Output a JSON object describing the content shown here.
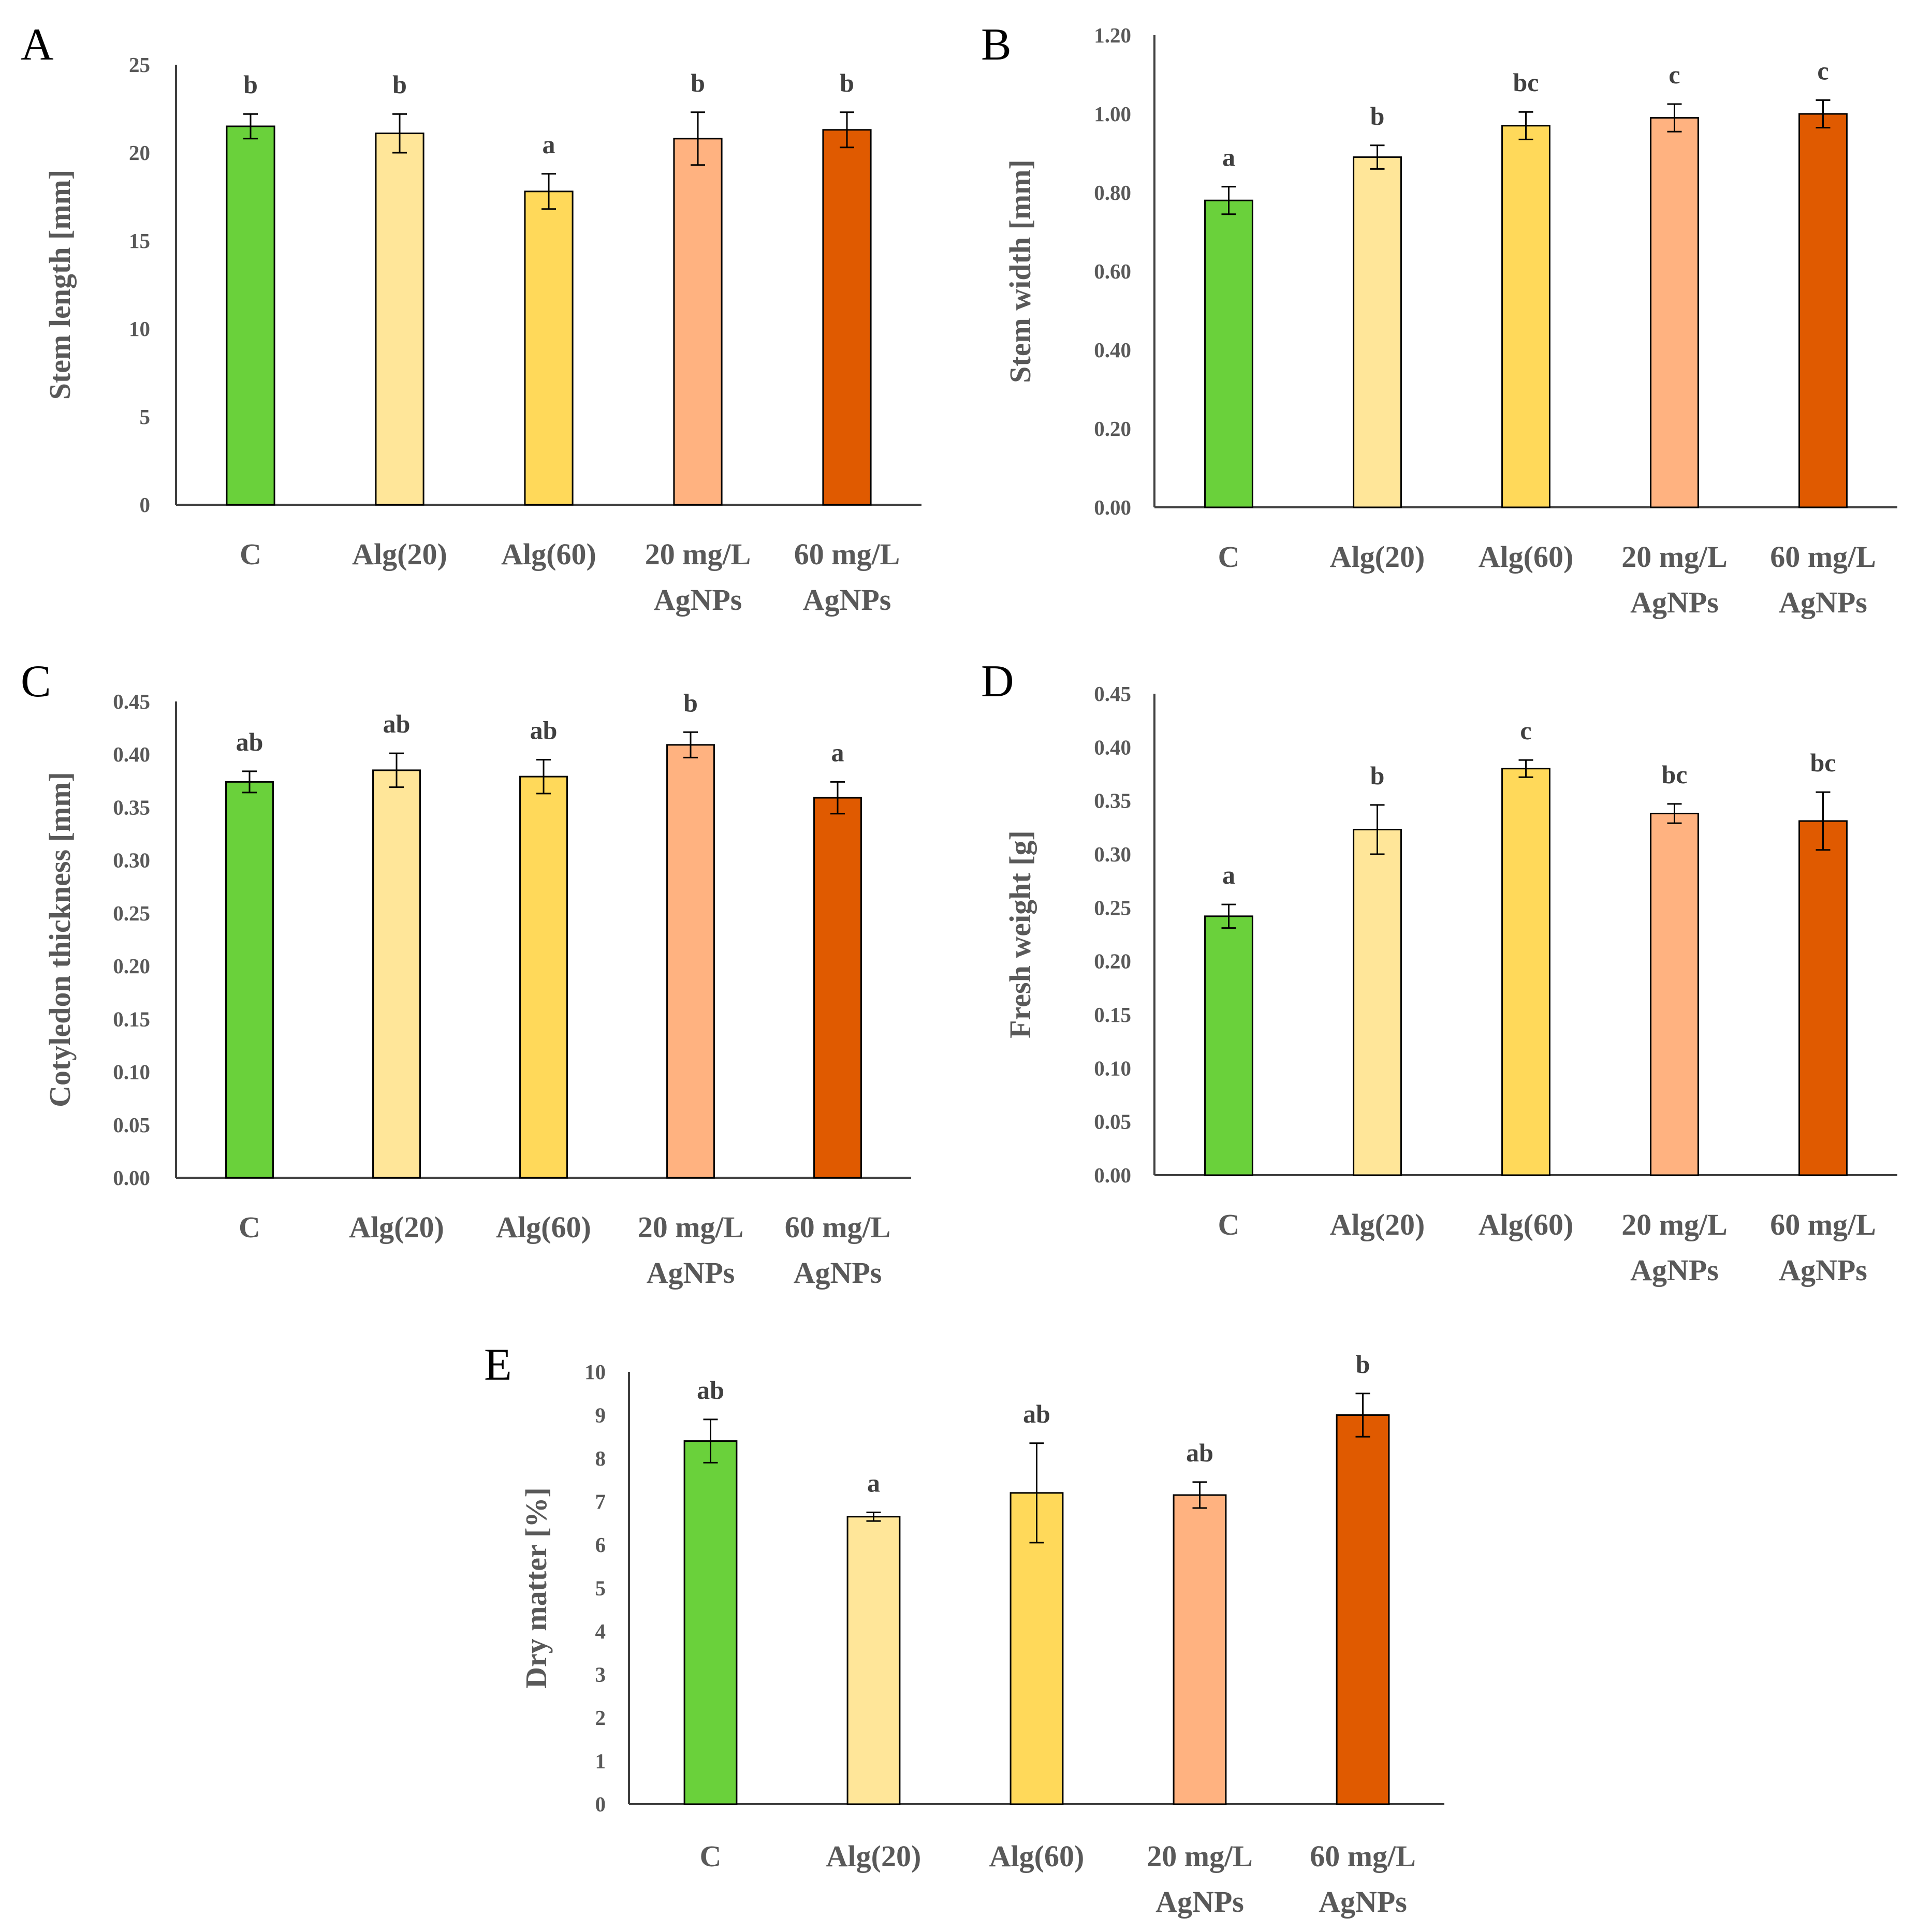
{
  "categories": [
    "C",
    "Alg(20)",
    "Alg(60)",
    "20 mg/L\nAgNPs",
    "60 mg/L\nAgNPs"
  ],
  "colors": [
    "#6ad13b",
    "#ffe699",
    "#ffd95a",
    "#ffb280",
    "#e05a00"
  ],
  "chart_data": [
    {
      "panel": "A",
      "type": "bar",
      "title": "",
      "ylabel": "Stem length [mm]",
      "categories": [
        "C",
        "Alg(20)",
        "Alg(60)",
        "20 mg/L\nAgNPs",
        "60 mg/L\nAgNPs"
      ],
      "values": [
        21.5,
        21.1,
        17.8,
        20.8,
        21.3
      ],
      "errors": [
        0.7,
        1.1,
        1.0,
        1.5,
        1.0
      ],
      "letters": [
        "b",
        "b",
        "a",
        "b",
        "b"
      ],
      "ylim": [
        0,
        25
      ],
      "yticks": [
        "0",
        "5",
        "10",
        "15",
        "20",
        "25"
      ]
    },
    {
      "panel": "B",
      "type": "bar",
      "title": "",
      "ylabel": "Stem width [mm]",
      "categories": [
        "C",
        "Alg(20)",
        "Alg(60)",
        "20 mg/L\nAgNPs",
        "60 mg/L\nAgNPs"
      ],
      "values": [
        0.78,
        0.89,
        0.97,
        0.99,
        1.0
      ],
      "errors": [
        0.035,
        0.03,
        0.035,
        0.035,
        0.035
      ],
      "letters": [
        "a",
        "b",
        "bc",
        "c",
        "c"
      ],
      "ylim": [
        0,
        1.2
      ],
      "yticks": [
        "0.00",
        "0.20",
        "0.40",
        "0.60",
        "0.80",
        "1.00",
        "1.20"
      ]
    },
    {
      "panel": "C",
      "type": "bar",
      "title": "",
      "ylabel": "Cotyledon thickness [mm]",
      "categories": [
        "C",
        "Alg(20)",
        "Alg(60)",
        "20 mg/L\nAgNPs",
        "60 mg/L\nAgNPs"
      ],
      "values": [
        0.374,
        0.385,
        0.379,
        0.409,
        0.359
      ],
      "errors": [
        0.01,
        0.016,
        0.016,
        0.012,
        0.015
      ],
      "letters": [
        "ab",
        "ab",
        "ab",
        "b",
        "a"
      ],
      "ylim": [
        0,
        0.45
      ],
      "yticks": [
        "0.00",
        "0.05",
        "0.10",
        "0.15",
        "0.20",
        "0.25",
        "0.30",
        "0.35",
        "0.40",
        "0.45"
      ]
    },
    {
      "panel": "D",
      "type": "bar",
      "title": "",
      "ylabel": "Fresh weight [g]",
      "categories": [
        "C",
        "Alg(20)",
        "Alg(60)",
        "20 mg/L\nAgNPs",
        "60 mg/L\nAgNPs"
      ],
      "values": [
        0.242,
        0.323,
        0.38,
        0.338,
        0.331
      ],
      "errors": [
        0.011,
        0.023,
        0.008,
        0.009,
        0.027
      ],
      "letters": [
        "a",
        "b",
        "c",
        "bc",
        "bc"
      ],
      "ylim": [
        0,
        0.45
      ],
      "yticks": [
        "0.00",
        "0.05",
        "0.10",
        "0.15",
        "0.20",
        "0.25",
        "0.30",
        "0.35",
        "0.40",
        "0.45"
      ]
    },
    {
      "panel": "E",
      "type": "bar",
      "title": "",
      "ylabel": "Dry matter  [%]",
      "categories": [
        "C",
        "Alg(20)",
        "Alg(60)",
        "20 mg/L\nAgNPs",
        "60 mg/L\nAgNPs"
      ],
      "values": [
        8.4,
        6.65,
        7.2,
        7.15,
        9.0
      ],
      "errors": [
        0.5,
        0.1,
        1.15,
        0.3,
        0.5
      ],
      "letters": [
        "ab",
        "a",
        "ab",
        "ab",
        "b"
      ],
      "ylim": [
        0,
        10
      ],
      "yticks": [
        "0",
        "1",
        "2",
        "3",
        "4",
        "5",
        "6",
        "7",
        "8",
        "9",
        "10"
      ]
    }
  ]
}
